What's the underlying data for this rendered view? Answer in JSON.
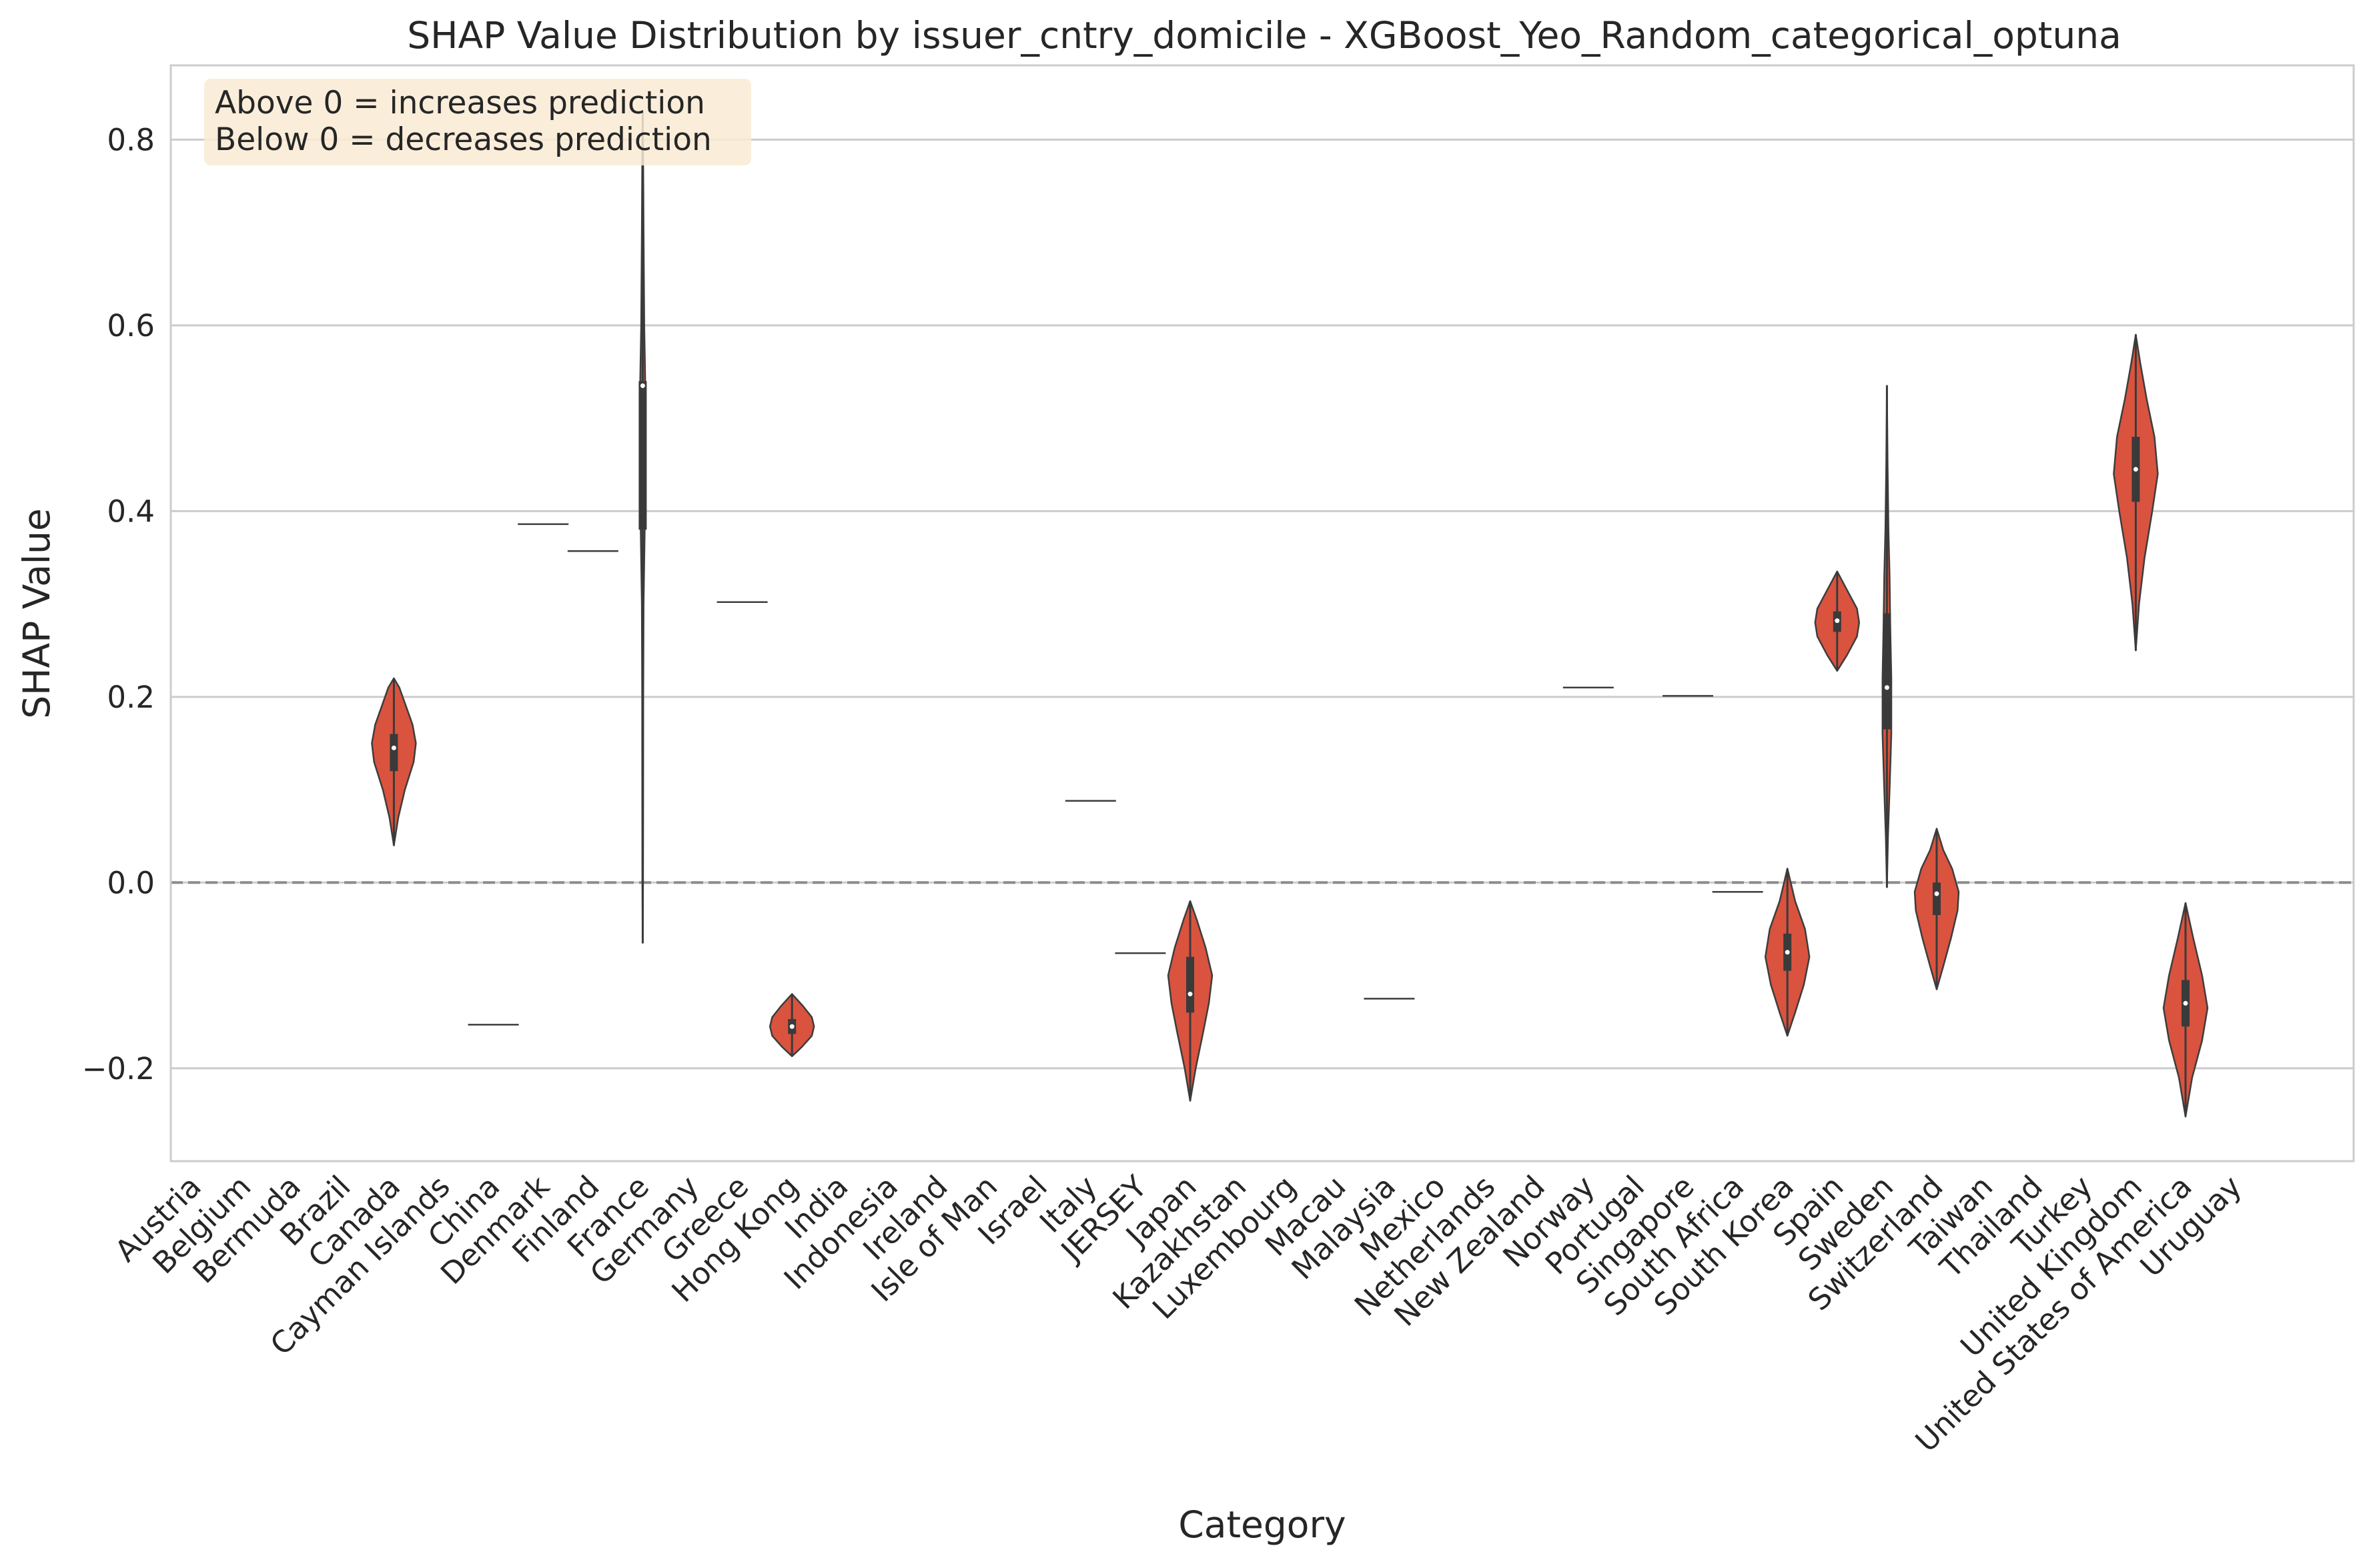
{
  "chart_data": {
    "type": "violin",
    "title": "SHAP Value Distribution by issuer_cntry_domicile - XGBoost_Yeo_Random_categorical_optuna",
    "xlabel": "Category",
    "ylabel": "SHAP Value",
    "ylim": [
      -0.3,
      0.88
    ],
    "yticks": [
      -0.2,
      0.0,
      0.2,
      0.4,
      0.6,
      0.8
    ],
    "ytick_labels": [
      "−0.2",
      "0.0",
      "0.2",
      "0.4",
      "0.6",
      "0.8"
    ],
    "grid": "horizontal",
    "reference_line": 0.0,
    "annotation": {
      "lines": [
        "Above 0 = increases prediction",
        "Below 0 = decreases prediction"
      ],
      "placement": "top-left",
      "background": "#f9ebd5"
    },
    "colors": {
      "violin_fill": "#d9533f",
      "violin_edge": "#3d3d3d",
      "box": "#3a3a3a",
      "median": "#ffffff",
      "grid": "#cccccc",
      "reference_line": "#8c8c8c"
    },
    "categories": [
      "Austria",
      "Belgium",
      "Bermuda",
      "Brazil",
      "Canada",
      "Cayman Islands",
      "China",
      "Denmark",
      "Finland",
      "France",
      "Germany",
      "Greece",
      "Hong Kong",
      "India",
      "Indonesia",
      "Ireland",
      "Isle of Man",
      "Israel",
      "Italy",
      "JERSEY",
      "Japan",
      "Kazakhstan",
      "Luxembourg",
      "Macau",
      "Malaysia",
      "Mexico",
      "Netherlands",
      "New Zealand",
      "Norway",
      "Portugal",
      "Singapore",
      "South Africa",
      "South Korea",
      "Spain",
      "Sweden",
      "Switzerland",
      "Taiwan",
      "Thailand",
      "Turkey",
      "United Kingdom",
      "United States of America",
      "Uruguay"
    ],
    "distributions": [
      {
        "category": "Austria",
        "type": "none"
      },
      {
        "category": "Belgium",
        "type": "none"
      },
      {
        "category": "Bermuda",
        "type": "none"
      },
      {
        "category": "Brazil",
        "type": "none"
      },
      {
        "category": "Canada",
        "type": "violin",
        "min": 0.04,
        "max": 0.22,
        "q1": 0.12,
        "median": 0.145,
        "q3": 0.16,
        "profile": [
          [
            0.04,
            0.0
          ],
          [
            0.07,
            0.2
          ],
          [
            0.1,
            0.5
          ],
          [
            0.13,
            0.9
          ],
          [
            0.15,
            1.0
          ],
          [
            0.17,
            0.85
          ],
          [
            0.19,
            0.55
          ],
          [
            0.21,
            0.25
          ],
          [
            0.22,
            0.0
          ]
        ]
      },
      {
        "category": "Cayman Islands",
        "type": "none"
      },
      {
        "category": "China",
        "type": "line",
        "value": -0.153
      },
      {
        "category": "Denmark",
        "type": "line",
        "value": 0.386
      },
      {
        "category": "Finland",
        "type": "line",
        "value": 0.357
      },
      {
        "category": "France",
        "type": "violin",
        "min": -0.065,
        "max": 0.83,
        "q1": 0.38,
        "median": 0.535,
        "q3": 0.54,
        "profile": [
          [
            -0.065,
            0.0
          ],
          [
            0.0,
            0.015
          ],
          [
            0.1,
            0.02
          ],
          [
            0.2,
            0.025
          ],
          [
            0.3,
            0.04
          ],
          [
            0.38,
            0.09
          ],
          [
            0.45,
            0.1
          ],
          [
            0.53,
            0.12
          ],
          [
            0.6,
            0.07
          ],
          [
            0.7,
            0.04
          ],
          [
            0.8,
            0.015
          ],
          [
            0.83,
            0.0
          ]
        ]
      },
      {
        "category": "Germany",
        "type": "none"
      },
      {
        "category": "Greece",
        "type": "line",
        "value": 0.302
      },
      {
        "category": "Hong Kong",
        "type": "violin",
        "min": -0.187,
        "max": -0.12,
        "q1": -0.163,
        "median": -0.155,
        "q3": -0.147,
        "profile": [
          [
            -0.187,
            0.0
          ],
          [
            -0.177,
            0.45
          ],
          [
            -0.165,
            0.9
          ],
          [
            -0.155,
            1.0
          ],
          [
            -0.145,
            0.9
          ],
          [
            -0.133,
            0.5
          ],
          [
            -0.12,
            0.0
          ]
        ]
      },
      {
        "category": "India",
        "type": "none"
      },
      {
        "category": "Indonesia",
        "type": "none"
      },
      {
        "category": "Ireland",
        "type": "none"
      },
      {
        "category": "Isle of Man",
        "type": "none"
      },
      {
        "category": "Israel",
        "type": "none"
      },
      {
        "category": "Italy",
        "type": "line",
        "value": 0.088
      },
      {
        "category": "JERSEY",
        "type": "line",
        "value": -0.076
      },
      {
        "category": "Japan",
        "type": "violin",
        "min": -0.235,
        "max": -0.02,
        "q1": -0.14,
        "median": -0.12,
        "q3": -0.08,
        "profile": [
          [
            -0.235,
            0.0
          ],
          [
            -0.2,
            0.25
          ],
          [
            -0.16,
            0.6
          ],
          [
            -0.13,
            0.85
          ],
          [
            -0.1,
            1.0
          ],
          [
            -0.07,
            0.7
          ],
          [
            -0.04,
            0.3
          ],
          [
            -0.02,
            0.0
          ]
        ]
      },
      {
        "category": "Kazakhstan",
        "type": "none"
      },
      {
        "category": "Luxembourg",
        "type": "none"
      },
      {
        "category": "Macau",
        "type": "none"
      },
      {
        "category": "Malaysia",
        "type": "line",
        "value": -0.125
      },
      {
        "category": "Mexico",
        "type": "none"
      },
      {
        "category": "Netherlands",
        "type": "none"
      },
      {
        "category": "New Zealand",
        "type": "none"
      },
      {
        "category": "Norway",
        "type": "line",
        "value": 0.21
      },
      {
        "category": "Portugal",
        "type": "none"
      },
      {
        "category": "Singapore",
        "type": "line",
        "value": 0.201
      },
      {
        "category": "South Africa",
        "type": "line",
        "value": -0.01
      },
      {
        "category": "South Korea",
        "type": "violin",
        "min": -0.165,
        "max": 0.015,
        "q1": -0.095,
        "median": -0.075,
        "q3": -0.055,
        "profile": [
          [
            -0.165,
            0.0
          ],
          [
            -0.14,
            0.35
          ],
          [
            -0.11,
            0.75
          ],
          [
            -0.08,
            1.0
          ],
          [
            -0.05,
            0.8
          ],
          [
            -0.02,
            0.35
          ],
          [
            0.015,
            0.0
          ]
        ]
      },
      {
        "category": "Spain",
        "type": "violin",
        "min": 0.228,
        "max": 0.335,
        "q1": 0.27,
        "median": 0.282,
        "q3": 0.292,
        "profile": [
          [
            0.228,
            0.0
          ],
          [
            0.245,
            0.45
          ],
          [
            0.265,
            0.9
          ],
          [
            0.28,
            1.0
          ],
          [
            0.295,
            0.9
          ],
          [
            0.315,
            0.45
          ],
          [
            0.335,
            0.0
          ]
        ]
      },
      {
        "category": "Sweden",
        "type": "violin",
        "min": -0.005,
        "max": 0.535,
        "q1": 0.165,
        "median": 0.21,
        "q3": 0.29,
        "profile": [
          [
            -0.005,
            0.0
          ],
          [
            0.05,
            0.05
          ],
          [
            0.1,
            0.12
          ],
          [
            0.16,
            0.2
          ],
          [
            0.22,
            0.2
          ],
          [
            0.28,
            0.15
          ],
          [
            0.33,
            0.12
          ],
          [
            0.38,
            0.07
          ],
          [
            0.45,
            0.03
          ],
          [
            0.535,
            0.0
          ]
        ]
      },
      {
        "category": "Switzerland",
        "type": "violin",
        "min": -0.115,
        "max": 0.058,
        "q1": -0.035,
        "median": -0.012,
        "q3": 0.0,
        "profile": [
          [
            -0.115,
            0.0
          ],
          [
            -0.09,
            0.3
          ],
          [
            -0.06,
            0.65
          ],
          [
            -0.03,
            0.95
          ],
          [
            -0.01,
            1.0
          ],
          [
            0.015,
            0.7
          ],
          [
            0.035,
            0.3
          ],
          [
            0.058,
            0.0
          ]
        ]
      },
      {
        "category": "Taiwan",
        "type": "none"
      },
      {
        "category": "Thailand",
        "type": "none"
      },
      {
        "category": "Turkey",
        "type": "none"
      },
      {
        "category": "United Kingdom",
        "type": "violin",
        "min": 0.25,
        "max": 0.59,
        "q1": 0.41,
        "median": 0.445,
        "q3": 0.48,
        "profile": [
          [
            0.25,
            0.0
          ],
          [
            0.3,
            0.15
          ],
          [
            0.35,
            0.4
          ],
          [
            0.4,
            0.75
          ],
          [
            0.44,
            1.0
          ],
          [
            0.48,
            0.85
          ],
          [
            0.52,
            0.5
          ],
          [
            0.56,
            0.2
          ],
          [
            0.59,
            0.0
          ]
        ]
      },
      {
        "category": "United States of America",
        "type": "violin",
        "min": -0.252,
        "max": -0.022,
        "q1": -0.155,
        "median": -0.13,
        "q3": -0.105,
        "profile": [
          [
            -0.252,
            0.0
          ],
          [
            -0.21,
            0.3
          ],
          [
            -0.17,
            0.75
          ],
          [
            -0.135,
            1.0
          ],
          [
            -0.1,
            0.75
          ],
          [
            -0.06,
            0.35
          ],
          [
            -0.022,
            0.0
          ]
        ]
      },
      {
        "category": "Uruguay",
        "type": "none"
      }
    ]
  }
}
